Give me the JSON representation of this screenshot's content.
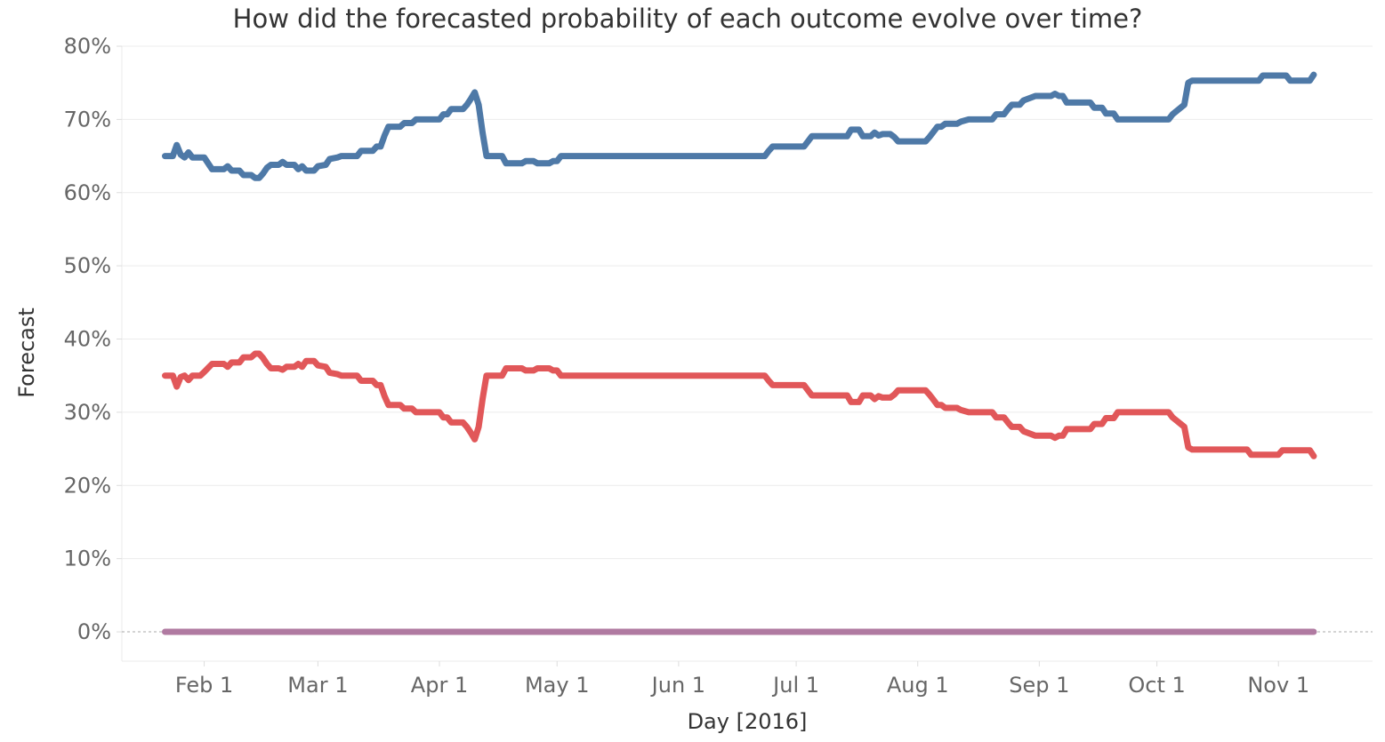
{
  "chart_data": {
    "type": "line",
    "title": "How did the forecasted probability of each outcome evolve over time?",
    "xlabel": "Day [2016]",
    "ylabel": "Forecast",
    "xlim": [
      "2016-01-11",
      "2016-11-25"
    ],
    "ylim": [
      -0.04,
      0.8
    ],
    "y_ticks": [
      0,
      0.1,
      0.2,
      0.3,
      0.4,
      0.5,
      0.6,
      0.7,
      0.8
    ],
    "y_tick_labels": [
      "0%",
      "10%",
      "20%",
      "30%",
      "40%",
      "50%",
      "60%",
      "70%",
      "80%"
    ],
    "x_ticks": [
      "2016-02-01",
      "2016-03-01",
      "2016-04-01",
      "2016-05-01",
      "2016-06-01",
      "2016-07-01",
      "2016-08-01",
      "2016-09-01",
      "2016-10-01",
      "2016-11-01"
    ],
    "x_tick_labels": [
      "Feb 1",
      "Mar 1",
      "Apr 1",
      "May 1",
      "Jun 1",
      "Jul 1",
      "Aug 1",
      "Sep 1",
      "Oct 1",
      "Nov 1"
    ],
    "grid": true,
    "zero_reference_line": true,
    "legend": "none",
    "series": [
      {
        "color": "#4e79a7",
        "points": [
          [
            "2016-01-22",
            0.65
          ],
          [
            "2016-01-24",
            0.65
          ],
          [
            "2016-01-25",
            0.665
          ],
          [
            "2016-01-26",
            0.652
          ],
          [
            "2016-01-27",
            0.648
          ],
          [
            "2016-01-28",
            0.655
          ],
          [
            "2016-01-29",
            0.648
          ],
          [
            "2016-02-01",
            0.648
          ],
          [
            "2016-02-02",
            0.64
          ],
          [
            "2016-02-03",
            0.632
          ],
          [
            "2016-02-06",
            0.632
          ],
          [
            "2016-02-07",
            0.636
          ],
          [
            "2016-02-08",
            0.63
          ],
          [
            "2016-02-10",
            0.63
          ],
          [
            "2016-02-11",
            0.624
          ],
          [
            "2016-02-13",
            0.624
          ],
          [
            "2016-02-14",
            0.62
          ],
          [
            "2016-02-15",
            0.62
          ],
          [
            "2016-02-16",
            0.626
          ],
          [
            "2016-02-17",
            0.634
          ],
          [
            "2016-02-18",
            0.638
          ],
          [
            "2016-02-20",
            0.638
          ],
          [
            "2016-02-21",
            0.642
          ],
          [
            "2016-02-22",
            0.638
          ],
          [
            "2016-02-24",
            0.638
          ],
          [
            "2016-02-25",
            0.632
          ],
          [
            "2016-02-26",
            0.636
          ],
          [
            "2016-02-27",
            0.63
          ],
          [
            "2016-02-29",
            0.63
          ],
          [
            "2016-03-01",
            0.636
          ],
          [
            "2016-03-03",
            0.638
          ],
          [
            "2016-03-04",
            0.646
          ],
          [
            "2016-03-06",
            0.648
          ],
          [
            "2016-03-07",
            0.65
          ],
          [
            "2016-03-11",
            0.65
          ],
          [
            "2016-03-12",
            0.657
          ],
          [
            "2016-03-15",
            0.657
          ],
          [
            "2016-03-16",
            0.663
          ],
          [
            "2016-03-17",
            0.663
          ],
          [
            "2016-03-18",
            0.678
          ],
          [
            "2016-03-19",
            0.69
          ],
          [
            "2016-03-22",
            0.69
          ],
          [
            "2016-03-23",
            0.695
          ],
          [
            "2016-03-25",
            0.695
          ],
          [
            "2016-03-26",
            0.7
          ],
          [
            "2016-04-01",
            0.7
          ],
          [
            "2016-04-02",
            0.707
          ],
          [
            "2016-04-03",
            0.707
          ],
          [
            "2016-04-04",
            0.714
          ],
          [
            "2016-04-07",
            0.714
          ],
          [
            "2016-04-08",
            0.72
          ],
          [
            "2016-04-09",
            0.728
          ],
          [
            "2016-04-10",
            0.737
          ],
          [
            "2016-04-11",
            0.72
          ],
          [
            "2016-04-12",
            0.682
          ],
          [
            "2016-04-13",
            0.65
          ],
          [
            "2016-04-17",
            0.65
          ],
          [
            "2016-04-18",
            0.64
          ],
          [
            "2016-04-22",
            0.64
          ],
          [
            "2016-04-23",
            0.643
          ],
          [
            "2016-04-25",
            0.643
          ],
          [
            "2016-04-26",
            0.64
          ],
          [
            "2016-04-29",
            0.64
          ],
          [
            "2016-04-30",
            0.643
          ],
          [
            "2016-05-01",
            0.643
          ],
          [
            "2016-05-02",
            0.65
          ],
          [
            "2016-06-23",
            0.65
          ],
          [
            "2016-06-24",
            0.657
          ],
          [
            "2016-06-25",
            0.663
          ],
          [
            "2016-07-03",
            0.663
          ],
          [
            "2016-07-04",
            0.67
          ],
          [
            "2016-07-05",
            0.677
          ],
          [
            "2016-07-14",
            0.677
          ],
          [
            "2016-07-15",
            0.686
          ],
          [
            "2016-07-17",
            0.686
          ],
          [
            "2016-07-18",
            0.677
          ],
          [
            "2016-07-20",
            0.677
          ],
          [
            "2016-07-21",
            0.682
          ],
          [
            "2016-07-22",
            0.678
          ],
          [
            "2016-07-23",
            0.68
          ],
          [
            "2016-07-25",
            0.68
          ],
          [
            "2016-07-26",
            0.676
          ],
          [
            "2016-07-27",
            0.67
          ],
          [
            "2016-08-03",
            0.67
          ],
          [
            "2016-08-04",
            0.676
          ],
          [
            "2016-08-05",
            0.683
          ],
          [
            "2016-08-06",
            0.69
          ],
          [
            "2016-08-07",
            0.69
          ],
          [
            "2016-08-08",
            0.694
          ],
          [
            "2016-08-11",
            0.694
          ],
          [
            "2016-08-12",
            0.697
          ],
          [
            "2016-08-14",
            0.7
          ],
          [
            "2016-08-20",
            0.7
          ],
          [
            "2016-08-21",
            0.707
          ],
          [
            "2016-08-23",
            0.707
          ],
          [
            "2016-08-24",
            0.714
          ],
          [
            "2016-08-25",
            0.72
          ],
          [
            "2016-08-27",
            0.72
          ],
          [
            "2016-08-28",
            0.726
          ],
          [
            "2016-08-31",
            0.732
          ],
          [
            "2016-09-04",
            0.732
          ],
          [
            "2016-09-05",
            0.735
          ],
          [
            "2016-09-06",
            0.732
          ],
          [
            "2016-09-07",
            0.732
          ],
          [
            "2016-09-08",
            0.723
          ],
          [
            "2016-09-14",
            0.723
          ],
          [
            "2016-09-15",
            0.716
          ],
          [
            "2016-09-17",
            0.716
          ],
          [
            "2016-09-18",
            0.708
          ],
          [
            "2016-09-20",
            0.708
          ],
          [
            "2016-09-21",
            0.7
          ],
          [
            "2016-10-04",
            0.7
          ],
          [
            "2016-10-05",
            0.707
          ],
          [
            "2016-10-08",
            0.72
          ],
          [
            "2016-10-09",
            0.75
          ],
          [
            "2016-10-10",
            0.753
          ],
          [
            "2016-10-27",
            0.753
          ],
          [
            "2016-10-28",
            0.76
          ],
          [
            "2016-11-03",
            0.76
          ],
          [
            "2016-11-04",
            0.753
          ],
          [
            "2016-11-09",
            0.753
          ],
          [
            "2016-11-10",
            0.761
          ]
        ]
      },
      {
        "color": "#e15759",
        "points": [
          [
            "2016-01-22",
            0.35
          ],
          [
            "2016-01-24",
            0.35
          ],
          [
            "2016-01-25",
            0.335
          ],
          [
            "2016-01-26",
            0.348
          ],
          [
            "2016-01-27",
            0.35
          ],
          [
            "2016-01-28",
            0.344
          ],
          [
            "2016-01-29",
            0.35
          ],
          [
            "2016-01-31",
            0.35
          ],
          [
            "2016-02-01",
            0.355
          ],
          [
            "2016-02-03",
            0.366
          ],
          [
            "2016-02-06",
            0.366
          ],
          [
            "2016-02-07",
            0.362
          ],
          [
            "2016-02-08",
            0.368
          ],
          [
            "2016-02-10",
            0.368
          ],
          [
            "2016-02-11",
            0.375
          ],
          [
            "2016-02-13",
            0.375
          ],
          [
            "2016-02-14",
            0.38
          ],
          [
            "2016-02-15",
            0.38
          ],
          [
            "2016-02-16",
            0.374
          ],
          [
            "2016-02-17",
            0.366
          ],
          [
            "2016-02-18",
            0.36
          ],
          [
            "2016-02-20",
            0.36
          ],
          [
            "2016-02-21",
            0.358
          ],
          [
            "2016-02-22",
            0.362
          ],
          [
            "2016-02-24",
            0.362
          ],
          [
            "2016-02-25",
            0.366
          ],
          [
            "2016-02-26",
            0.362
          ],
          [
            "2016-02-27",
            0.37
          ],
          [
            "2016-02-29",
            0.37
          ],
          [
            "2016-03-01",
            0.364
          ],
          [
            "2016-03-03",
            0.362
          ],
          [
            "2016-03-04",
            0.354
          ],
          [
            "2016-03-06",
            0.352
          ],
          [
            "2016-03-07",
            0.35
          ],
          [
            "2016-03-11",
            0.35
          ],
          [
            "2016-03-12",
            0.343
          ],
          [
            "2016-03-15",
            0.343
          ],
          [
            "2016-03-16",
            0.337
          ],
          [
            "2016-03-17",
            0.337
          ],
          [
            "2016-03-18",
            0.322
          ],
          [
            "2016-03-19",
            0.31
          ],
          [
            "2016-03-22",
            0.31
          ],
          [
            "2016-03-23",
            0.305
          ],
          [
            "2016-03-25",
            0.305
          ],
          [
            "2016-03-26",
            0.3
          ],
          [
            "2016-04-01",
            0.3
          ],
          [
            "2016-04-02",
            0.293
          ],
          [
            "2016-04-03",
            0.293
          ],
          [
            "2016-04-04",
            0.286
          ],
          [
            "2016-04-07",
            0.286
          ],
          [
            "2016-04-08",
            0.28
          ],
          [
            "2016-04-09",
            0.272
          ],
          [
            "2016-04-10",
            0.263
          ],
          [
            "2016-04-11",
            0.28
          ],
          [
            "2016-04-12",
            0.318
          ],
          [
            "2016-04-13",
            0.35
          ],
          [
            "2016-04-17",
            0.35
          ],
          [
            "2016-04-18",
            0.36
          ],
          [
            "2016-04-22",
            0.36
          ],
          [
            "2016-04-23",
            0.357
          ],
          [
            "2016-04-25",
            0.357
          ],
          [
            "2016-04-26",
            0.36
          ],
          [
            "2016-04-29",
            0.36
          ],
          [
            "2016-04-30",
            0.357
          ],
          [
            "2016-05-01",
            0.357
          ],
          [
            "2016-05-02",
            0.35
          ],
          [
            "2016-06-23",
            0.35
          ],
          [
            "2016-06-24",
            0.343
          ],
          [
            "2016-06-25",
            0.337
          ],
          [
            "2016-07-03",
            0.337
          ],
          [
            "2016-07-04",
            0.33
          ],
          [
            "2016-07-05",
            0.323
          ],
          [
            "2016-07-14",
            0.323
          ],
          [
            "2016-07-15",
            0.314
          ],
          [
            "2016-07-17",
            0.314
          ],
          [
            "2016-07-18",
            0.323
          ],
          [
            "2016-07-20",
            0.323
          ],
          [
            "2016-07-21",
            0.318
          ],
          [
            "2016-07-22",
            0.322
          ],
          [
            "2016-07-23",
            0.32
          ],
          [
            "2016-07-25",
            0.32
          ],
          [
            "2016-07-26",
            0.324
          ],
          [
            "2016-07-27",
            0.33
          ],
          [
            "2016-08-03",
            0.33
          ],
          [
            "2016-08-04",
            0.324
          ],
          [
            "2016-08-05",
            0.317
          ],
          [
            "2016-08-06",
            0.31
          ],
          [
            "2016-08-07",
            0.31
          ],
          [
            "2016-08-08",
            0.306
          ],
          [
            "2016-08-11",
            0.306
          ],
          [
            "2016-08-12",
            0.303
          ],
          [
            "2016-08-14",
            0.3
          ],
          [
            "2016-08-20",
            0.3
          ],
          [
            "2016-08-21",
            0.293
          ],
          [
            "2016-08-23",
            0.293
          ],
          [
            "2016-08-24",
            0.286
          ],
          [
            "2016-08-25",
            0.28
          ],
          [
            "2016-08-27",
            0.28
          ],
          [
            "2016-08-28",
            0.274
          ],
          [
            "2016-08-31",
            0.268
          ],
          [
            "2016-09-04",
            0.268
          ],
          [
            "2016-09-05",
            0.265
          ],
          [
            "2016-09-06",
            0.268
          ],
          [
            "2016-09-07",
            0.268
          ],
          [
            "2016-09-08",
            0.277
          ],
          [
            "2016-09-14",
            0.277
          ],
          [
            "2016-09-15",
            0.284
          ],
          [
            "2016-09-17",
            0.284
          ],
          [
            "2016-09-18",
            0.292
          ],
          [
            "2016-09-20",
            0.292
          ],
          [
            "2016-09-21",
            0.3
          ],
          [
            "2016-10-04",
            0.3
          ],
          [
            "2016-10-05",
            0.293
          ],
          [
            "2016-10-08",
            0.28
          ],
          [
            "2016-10-09",
            0.252
          ],
          [
            "2016-10-10",
            0.249
          ],
          [
            "2016-10-24",
            0.249
          ],
          [
            "2016-10-25",
            0.242
          ],
          [
            "2016-11-01",
            0.242
          ],
          [
            "2016-11-02",
            0.248
          ],
          [
            "2016-11-09",
            0.248
          ],
          [
            "2016-11-10",
            0.24
          ]
        ]
      },
      {
        "color": "#b07aa1",
        "points": [
          [
            "2016-01-22",
            0.0
          ],
          [
            "2016-11-10",
            0.0
          ]
        ]
      }
    ]
  }
}
